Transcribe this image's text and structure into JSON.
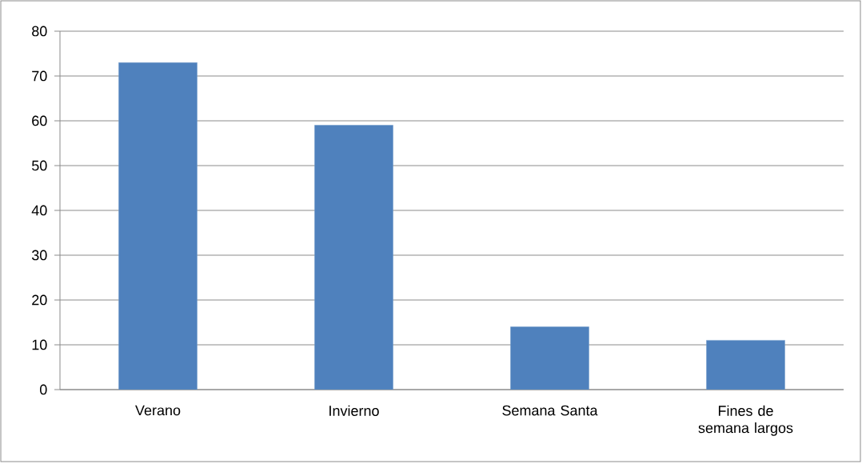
{
  "chart_data": {
    "type": "bar",
    "categories": [
      "Verano",
      "Invierno",
      "Semana Santa",
      "Fines de semana largos"
    ],
    "values": [
      73,
      59,
      14,
      11
    ],
    "color": "#4f81bd",
    "ylim": [
      0,
      80
    ],
    "yticks": [
      0,
      10,
      20,
      30,
      40,
      50,
      60,
      70,
      80
    ],
    "grid": "y"
  }
}
